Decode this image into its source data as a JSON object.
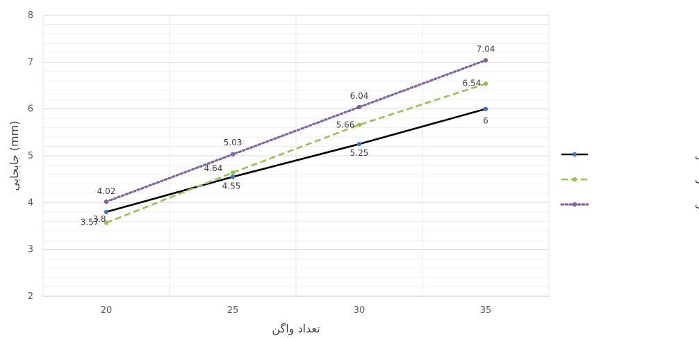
{
  "chart_data": {
    "type": "line",
    "title": "",
    "xlabel": "تعداد واگن",
    "ylabel": "جابجایی (mm)",
    "categories": [
      "20",
      "25",
      "30",
      "35"
    ],
    "ylim": [
      2,
      8
    ],
    "yticks": [
      "2",
      "3",
      "4",
      "5",
      "6",
      "7",
      "8"
    ],
    "grid": true,
    "legend_position": "right",
    "series": [
      {
        "name": "نتایج حاصل از آنالیز مدل",
        "values": [
          3.8,
          4.55,
          5.25,
          6
        ],
        "labels": [
          "3.8",
          "4.55",
          "5.25",
          "6"
        ],
        "line_color": "#000000",
        "marker_color": "#4472C4",
        "dash": "solid"
      },
      {
        "name": "بارهای متمرکز متحرک",
        "values": [
          3.57,
          4.64,
          5.66,
          6.54
        ],
        "labels": [
          "3.57",
          "4.64",
          "5.66",
          "6.54"
        ],
        "line_color": "#92C353",
        "marker_color": "#92C353",
        "dash": "dashed"
      },
      {
        "name": "تک بار متحرک",
        "values": [
          4.02,
          5.03,
          6.04,
          7.04
        ],
        "labels": [
          "4.02",
          "5.03",
          "6.04",
          "7.04"
        ],
        "line_color": "#8064A2",
        "marker_color": "#8064A2",
        "dash": "dotted"
      }
    ]
  }
}
